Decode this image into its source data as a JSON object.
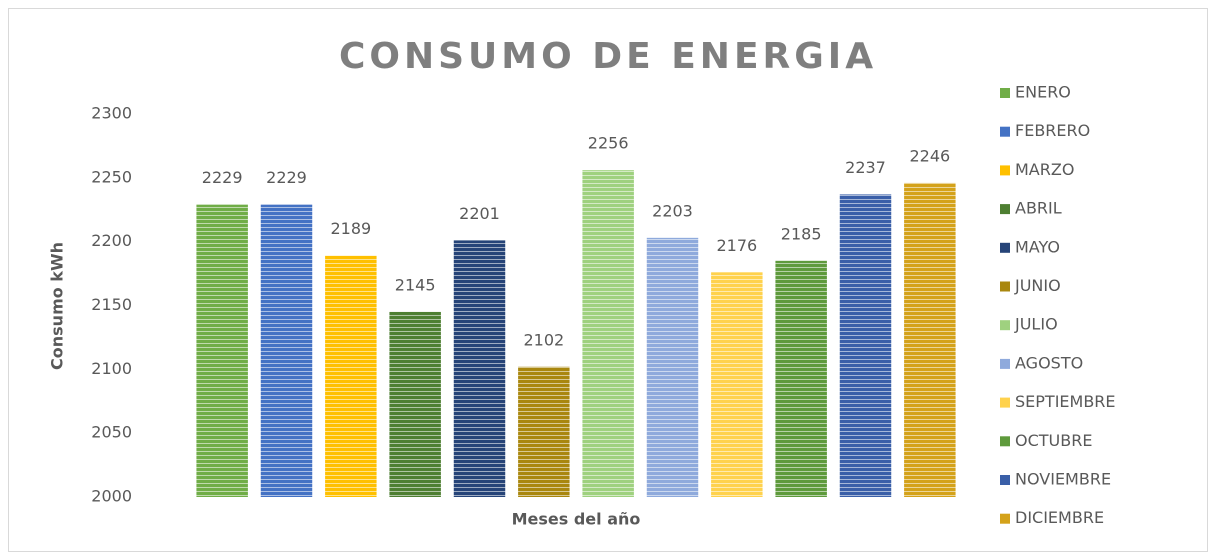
{
  "chart_data": {
    "type": "bar",
    "title": "CONSUMO DE ENERGIA",
    "y_label": "Consumo kWh",
    "x_label": "Meses del año",
    "series": [
      {
        "name": "ENERO",
        "color": "#70ad47",
        "values": [
          2229
        ]
      },
      {
        "name": "FEBRERO",
        "color": "#4472c4",
        "values": [
          2229
        ]
      },
      {
        "name": "MARZO",
        "color": "#ffc000",
        "values": [
          2189
        ]
      },
      {
        "name": "ABRIL",
        "color": "#4e7f32",
        "values": [
          2145
        ]
      },
      {
        "name": "MAYO",
        "color": "#264478",
        "values": [
          2201
        ]
      },
      {
        "name": "JUNIO",
        "color": "#a9870f",
        "values": [
          2102
        ]
      },
      {
        "name": "JULIO",
        "color": "#9fd17f",
        "values": [
          2256
        ]
      },
      {
        "name": "AGOSTO",
        "color": "#8faadc",
        "values": [
          2203
        ]
      },
      {
        "name": "SEPTIEMBRE",
        "color": "#ffd24d",
        "values": [
          2176
        ]
      },
      {
        "name": "OCTUBRE",
        "color": "#5e9a3c",
        "values": [
          2185
        ]
      },
      {
        "name": "NOVIEMBRE",
        "color": "#3a5fa8",
        "values": [
          2237
        ]
      },
      {
        "name": "DICIEMBRE",
        "color": "#d4a21a",
        "values": [
          2246
        ]
      }
    ],
    "ylim": [
      2000,
      2300
    ],
    "yticks": [
      2000,
      2050,
      2100,
      2150,
      2200,
      2250,
      2300
    ],
    "legend": "right"
  }
}
